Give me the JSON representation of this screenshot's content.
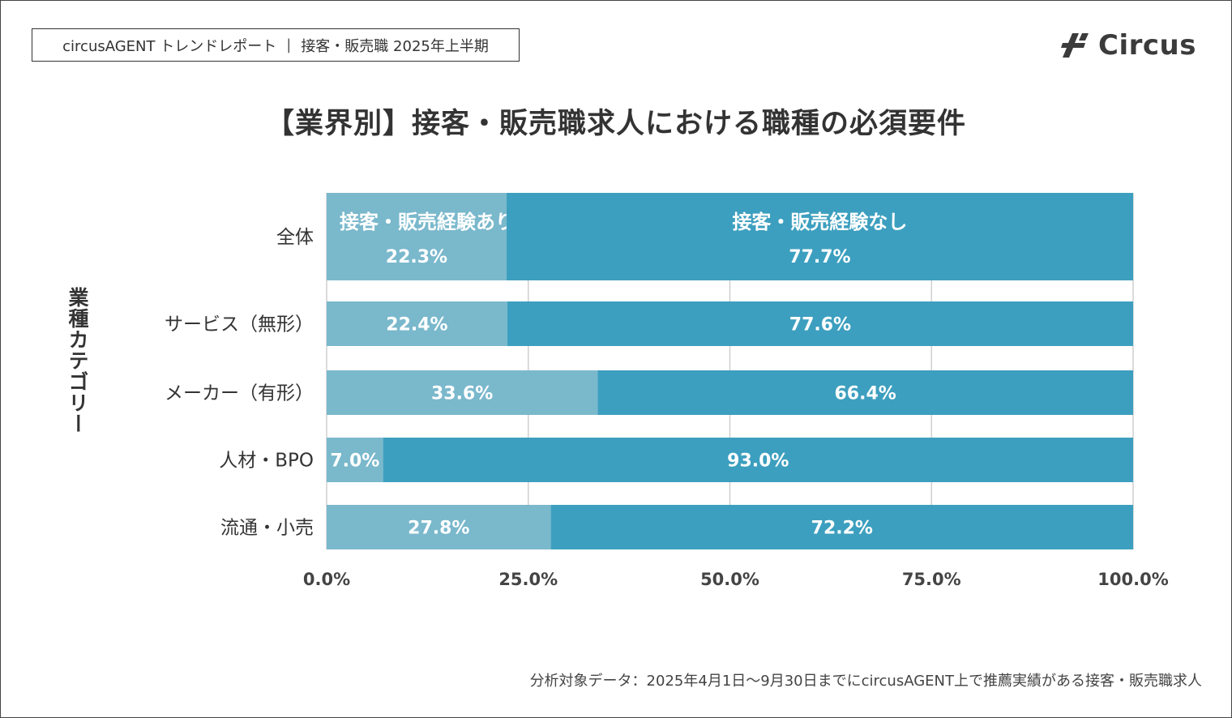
{
  "header": {
    "report_label": "circusAGENT トレンドレポート",
    "report_topic": "接客・販売職 2025年上半期",
    "logo_text": "Circus"
  },
  "chart_data": {
    "type": "bar",
    "orientation": "horizontal",
    "stacked": true,
    "title": "【業界別】接客・販売職求人における職種の必須要件",
    "ylabel": "業種カテゴリー",
    "xlabel": "",
    "xlim": [
      0,
      100
    ],
    "xticks": [
      "0.0%",
      "25.0%",
      "50.0%",
      "75.0%",
      "100.0%"
    ],
    "categories": [
      "全体",
      "サービス（無形）",
      "メーカー（有形）",
      "人材・BPO",
      "流通・小売"
    ],
    "series": [
      {
        "name": "接客・販売経験あり",
        "values": [
          22.3,
          22.4,
          33.6,
          7.0,
          27.8
        ],
        "color": "#7ab8cc"
      },
      {
        "name": "接客・販売経験なし",
        "values": [
          77.7,
          77.6,
          66.4,
          93.0,
          72.2
        ],
        "color": "#3d9fbf"
      }
    ],
    "legend_placement": "inside-first-bar",
    "grid": true
  },
  "footnote": "分析対象データ：2025年4月1日〜9月30日までにcircusAGENT上で推薦実績がある接客・販売職求人"
}
